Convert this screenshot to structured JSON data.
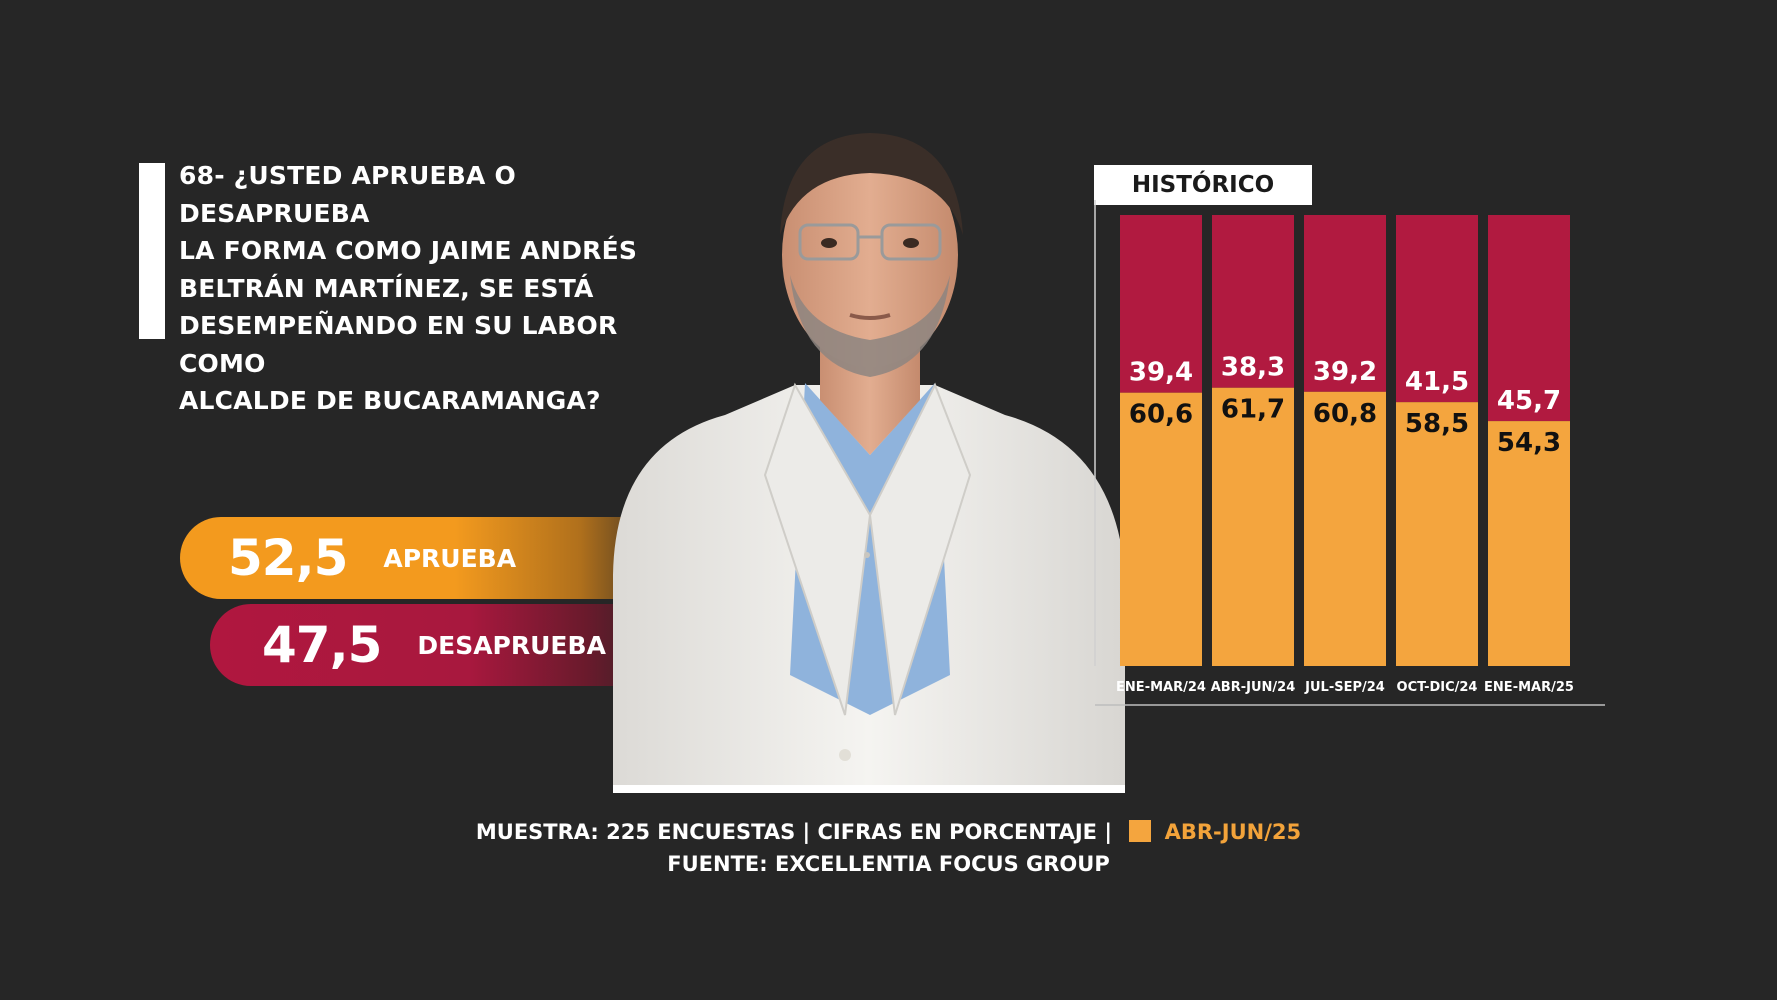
{
  "question": {
    "lines": [
      "68- ¿USTED APRUEBA O DESAPRUEBA",
      "LA FORMA COMO JAIME ANDRÉS",
      "BELTRÁN MARTÍNEZ, SE ESTÁ",
      "DESEMPEÑANDO EN SU LABOR COMO",
      "ALCALDE DE BUCARAMANGA?"
    ]
  },
  "current": {
    "approve": {
      "value": "52,5",
      "label": "APRUEBA"
    },
    "disapprove": {
      "value": "47,5",
      "label": "DESAPRUEBA"
    }
  },
  "historic": {
    "title": "HISTÓRICO"
  },
  "footer": {
    "line1_prefix": "MUESTRA: 225 ENCUESTAS | CIFRAS EN PORCENTAJE |",
    "legend_label": "ABR-JUN/25",
    "line2": "FUENTE: EXCELLENTIA FOCUS GROUP"
  },
  "colors": {
    "background": "#262626",
    "approve": "#f4a53e",
    "disapprove": "#b11a40"
  },
  "chart_data": [
    {
      "type": "bar",
      "stacked": true,
      "title": "HISTÓRICO",
      "categories": [
        "ENE-MAR/24",
        "ABR-JUN/24",
        "JUL-SEP/24",
        "OCT-DIC/24",
        "ENE-MAR/25"
      ],
      "series": [
        {
          "values": [
            60.6,
            61.7,
            60.8,
            58.5,
            54.3
          ],
          "labels": [
            "60,6",
            "61,7",
            "60,8",
            "58,5",
            "54,3"
          ],
          "color": "#f4a53e"
        },
        {
          "values": [
            39.4,
            38.3,
            39.2,
            41.5,
            45.7
          ],
          "labels": [
            "39,4",
            "38,3",
            "39,2",
            "41,5",
            "45,7"
          ],
          "color": "#b11a40"
        }
      ],
      "ylim": [
        0,
        100
      ]
    },
    {
      "type": "bar",
      "categories": [
        "APRUEBA",
        "DESAPRUEBA"
      ],
      "values": [
        52.5,
        47.5
      ],
      "labels": [
        "52,5",
        "47,5"
      ],
      "period": "ABR-JUN/25"
    }
  ]
}
